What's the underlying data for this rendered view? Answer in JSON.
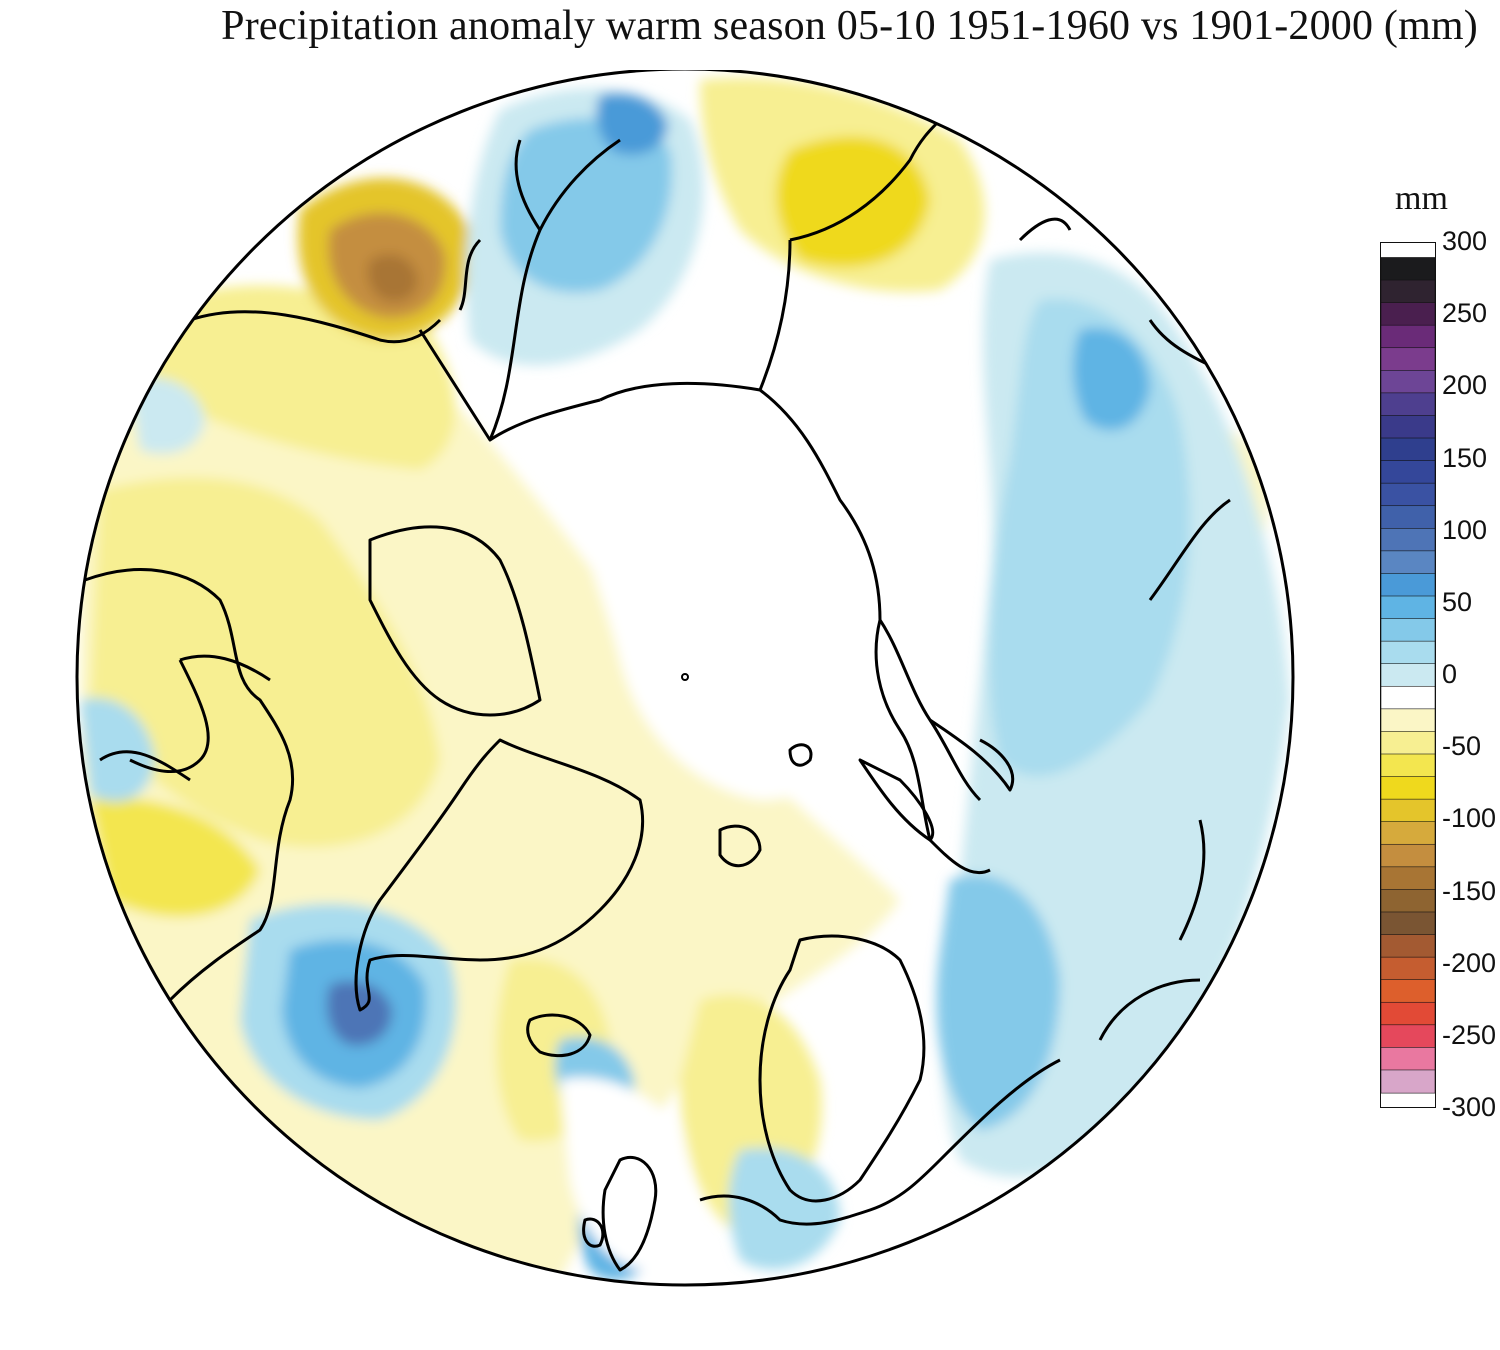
{
  "title": "Precipitation anomaly warm season 05-10 1951-1960 vs 1901-2000 (mm)",
  "legend": {
    "unit": "mm",
    "min": -300,
    "max": 300,
    "tick_labels": [
      "300",
      "250",
      "200",
      "150",
      "100",
      "50",
      "0",
      "-50",
      "-100",
      "-150",
      "-200",
      "-250",
      "-300"
    ],
    "tick_values": [
      300,
      250,
      200,
      150,
      100,
      50,
      0,
      -50,
      -100,
      -150,
      -200,
      -250,
      -300
    ],
    "color_bands_top_to_bottom": [
      "#1b1b1d",
      "#2f2330",
      "#4a1f4f",
      "#6a2b78",
      "#7b3c8d",
      "#6d4596",
      "#4e3f8f",
      "#3a3a8a",
      "#2f3f8e",
      "#34479a",
      "#3a52a3",
      "#4061aa",
      "#4e74b6",
      "#5a86c2",
      "#4a9ad8",
      "#5fb4e4",
      "#84c9e9",
      "#a9dcee",
      "#cbe9f1",
      "#ffffff",
      "#fbf6c6",
      "#f7ef92",
      "#f3e64f",
      "#efd91d",
      "#e4c52b",
      "#d6aa3c",
      "#c48e3f",
      "#a87534",
      "#8e6431",
      "#7a5533",
      "#a35a32",
      "#c55d30",
      "#dd5f2c",
      "#e24a36",
      "#e5485c",
      "#e978a0",
      "#d8a6c9"
    ]
  },
  "map": {
    "projection": "north-polar-stereographic",
    "positive_anomaly_color": "#5fb4e4",
    "negative_anomaly_color": "#f3e64f",
    "coastline_color": "#000000"
  }
}
